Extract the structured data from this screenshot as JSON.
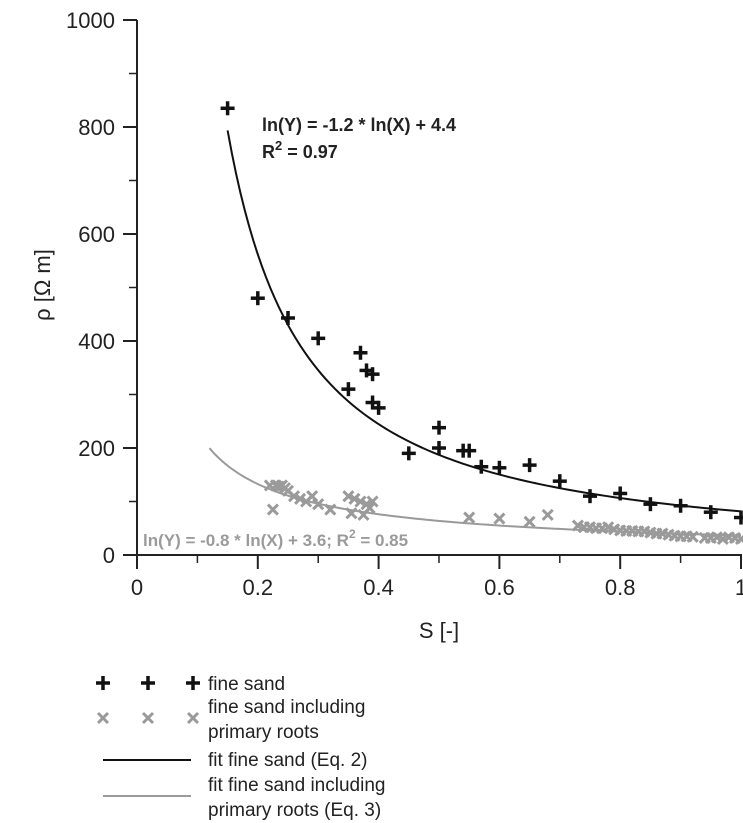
{
  "chart_data": {
    "type": "scatter",
    "xlabel": "S [-]",
    "ylabel": "ρ [Ω m]",
    "xlim": [
      0,
      1
    ],
    "ylim": [
      0,
      1000
    ],
    "x_ticks": [
      0,
      0.2,
      0.4,
      0.6,
      0.8,
      1
    ],
    "x_tick_labels": [
      "0",
      "0.2",
      "0.4",
      "0.6",
      "0.8",
      "1"
    ],
    "y_ticks": [
      0,
      200,
      400,
      600,
      800,
      1000
    ],
    "y_tick_labels": [
      "0",
      "200",
      "400",
      "600",
      "800",
      "1000"
    ],
    "grid": false,
    "legend_position": "bottom",
    "series": [
      {
        "name": "fine sand",
        "marker": "plus",
        "color": "#111111",
        "x": [
          0.15,
          0.2,
          0.25,
          0.3,
          0.35,
          0.37,
          0.38,
          0.39,
          0.39,
          0.4,
          0.45,
          0.5,
          0.5,
          0.54,
          0.55,
          0.57,
          0.6,
          0.65,
          0.7,
          0.75,
          0.8,
          0.85,
          0.9,
          0.95,
          1.0
        ],
        "y": [
          835,
          480,
          443,
          405,
          310,
          378,
          345,
          338,
          285,
          275,
          190,
          238,
          200,
          195,
          195,
          165,
          163,
          168,
          138,
          110,
          115,
          95,
          92,
          80,
          70
        ]
      },
      {
        "name": "fine sand including primary roots",
        "marker": "x",
        "color": "#9a9a9a",
        "x": [
          0.22,
          0.225,
          0.23,
          0.235,
          0.24,
          0.245,
          0.25,
          0.26,
          0.27,
          0.28,
          0.29,
          0.3,
          0.32,
          0.35,
          0.355,
          0.36,
          0.37,
          0.375,
          0.38,
          0.385,
          0.39,
          0.55,
          0.6,
          0.65,
          0.68,
          0.73,
          0.74,
          0.75,
          0.76,
          0.77,
          0.78,
          0.79,
          0.8,
          0.81,
          0.82,
          0.83,
          0.84,
          0.85,
          0.86,
          0.87,
          0.88,
          0.89,
          0.9,
          0.91,
          0.92,
          0.94,
          0.95,
          0.96,
          0.97,
          0.98,
          0.99,
          1.0
        ],
        "y": [
          130,
          85,
          130,
          128,
          130,
          125,
          120,
          110,
          105,
          100,
          110,
          95,
          85,
          110,
          78,
          105,
          100,
          75,
          95,
          88,
          100,
          70,
          68,
          62,
          75,
          55,
          52,
          52,
          50,
          50,
          52,
          48,
          46,
          45,
          45,
          44,
          44,
          42,
          40,
          40,
          38,
          36,
          35,
          35,
          34,
          32,
          32,
          33,
          30,
          33,
          32,
          30
        ]
      },
      {
        "name": "fit fine sand (Eq. 2)",
        "type": "line",
        "color": "#111111",
        "equation": "ln(Y) = -1.2 * ln(X) + 4.4",
        "slope": -1.2,
        "intercept": 4.4,
        "x_range": [
          0.15,
          1.0
        ]
      },
      {
        "name": "fit fine sand including primary roots (Eq. 3)",
        "type": "line",
        "color": "#9a9a9a",
        "equation": "ln(Y) = -0.8 * ln(X) + 3.6; R2 = 0.85",
        "slope": -0.8,
        "intercept": 3.6,
        "x_range": [
          0.12,
          1.0
        ]
      }
    ],
    "annotations": {
      "fit1_eq": "ln(Y) = -1.2 * ln(X) + 4.4",
      "fit1_r2_prefix": "R",
      "fit1_r2_sup": "2",
      "fit1_r2_suffix": " = 0.97",
      "fit2_eq_prefix": "ln(Y) = -0.8 * ln(X) + 3.6; R",
      "fit2_eq_sup": "2",
      "fit2_eq_suffix": " = 0.85"
    },
    "legend": [
      {
        "label_lines": [
          "fine sand"
        ],
        "symbol": "plus",
        "color": "#111111"
      },
      {
        "label_lines": [
          "fine sand including",
          "primary roots"
        ],
        "symbol": "x",
        "color": "#9a9a9a"
      },
      {
        "label_lines": [
          "fit fine sand (Eq. 2)"
        ],
        "symbol": "line",
        "color": "#111111"
      },
      {
        "label_lines": [
          "fit fine sand including",
          "primary roots (Eq. 3)"
        ],
        "symbol": "line",
        "color": "#9a9a9a"
      }
    ]
  }
}
